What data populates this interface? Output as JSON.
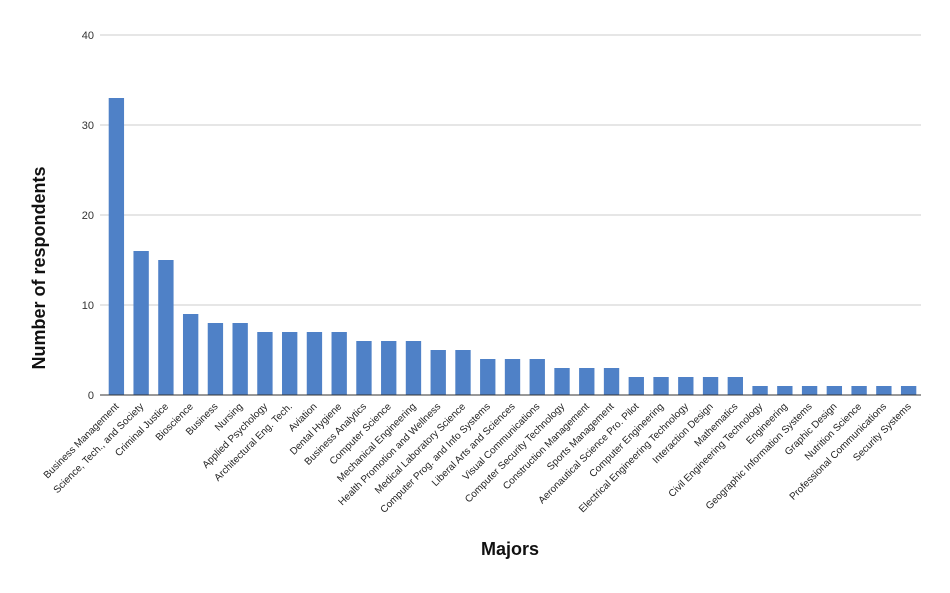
{
  "chart_data": {
    "type": "bar",
    "xlabel": "Majors",
    "ylabel": "Number of respondents",
    "ylim": [
      0,
      40
    ],
    "yticks": [
      0,
      10,
      20,
      30,
      40
    ],
    "grid": true,
    "bar_color": "#4f81c7",
    "grid_color": "#cccccc",
    "axis_color": "#333333",
    "categories": [
      "Business Management",
      "Science, Tech., and Society",
      "Criminal Justice",
      "Bioscience",
      "Business",
      "Nursing",
      "Applied Psychology",
      "Architectural Eng. Tech.",
      "Aviation",
      "Dental Hygiene",
      "Business Analytics",
      "Computer Science",
      "Mechanical Engineering",
      "Health Promotion and Wellness",
      "Medical Laboratory Science",
      "Computer Prog. and Info Systems",
      "Liberal Arts and Sciences",
      "Visual Communications",
      "Computer Security Technology",
      "Construction Management",
      "Sports Management",
      "Aeronautical Science Pro. Pilot",
      "Computer Engineering",
      "Electrical Engineering Technology",
      "Interaction Design",
      "Mathematics",
      "Civil Engineering Technology",
      "Engineering",
      "Geographic Information Systems",
      "Graphic Design",
      "Nutrition Science",
      "Professional Communications",
      "Security Systems"
    ],
    "values": [
      33,
      16,
      15,
      9,
      8,
      8,
      7,
      7,
      7,
      7,
      6,
      6,
      6,
      5,
      5,
      4,
      4,
      4,
      3,
      3,
      3,
      2,
      2,
      2,
      2,
      2,
      1,
      1,
      1,
      1,
      1,
      1,
      1
    ]
  }
}
